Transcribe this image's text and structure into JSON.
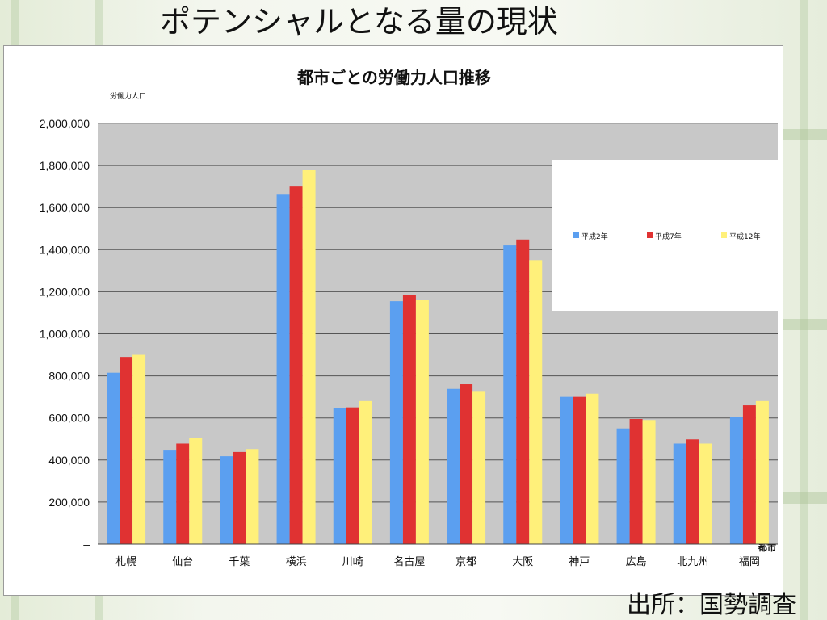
{
  "slide": {
    "title": "ポテンシャルとなる量の現状",
    "source": "出所：国勢調査"
  },
  "colors": {
    "plot_background": "#c8c8c8",
    "gridline": "#555555",
    "series": [
      "#5b9ff0",
      "#e03232",
      "#fff07a"
    ]
  },
  "chart_data": {
    "type": "bar",
    "title": "都市ごとの労働力人口推移",
    "ylabel": "労働力人口",
    "xlabel": "都市",
    "ylim": [
      0,
      2000000
    ],
    "yticks": [
      0,
      200000,
      400000,
      600000,
      800000,
      1000000,
      1200000,
      1400000,
      1600000,
      1800000,
      2000000
    ],
    "ytick_labels": [
      "–",
      "200,000",
      "400,000",
      "600,000",
      "800,000",
      "1,000,000",
      "1,200,000",
      "1,400,000",
      "1,600,000",
      "1,800,000",
      "2,000,000"
    ],
    "grid": true,
    "legend_position": "upper-right",
    "categories": [
      "札幌",
      "仙台",
      "千葉",
      "横浜",
      "川崎",
      "名古屋",
      "京都",
      "大阪",
      "神戸",
      "広島",
      "北九州",
      "福岡"
    ],
    "series": [
      {
        "name": "平成2年",
        "values": [
          815000,
          445000,
          418000,
          1665000,
          648000,
          1155000,
          738000,
          1420000,
          700000,
          550000,
          478000,
          605000
        ]
      },
      {
        "name": "平成7年",
        "values": [
          890000,
          478000,
          438000,
          1700000,
          650000,
          1185000,
          760000,
          1448000,
          700000,
          595000,
          498000,
          660000
        ]
      },
      {
        "name": "平成12年",
        "values": [
          900000,
          505000,
          452000,
          1780000,
          680000,
          1160000,
          728000,
          1350000,
          715000,
          590000,
          478000,
          680000
        ]
      }
    ]
  }
}
